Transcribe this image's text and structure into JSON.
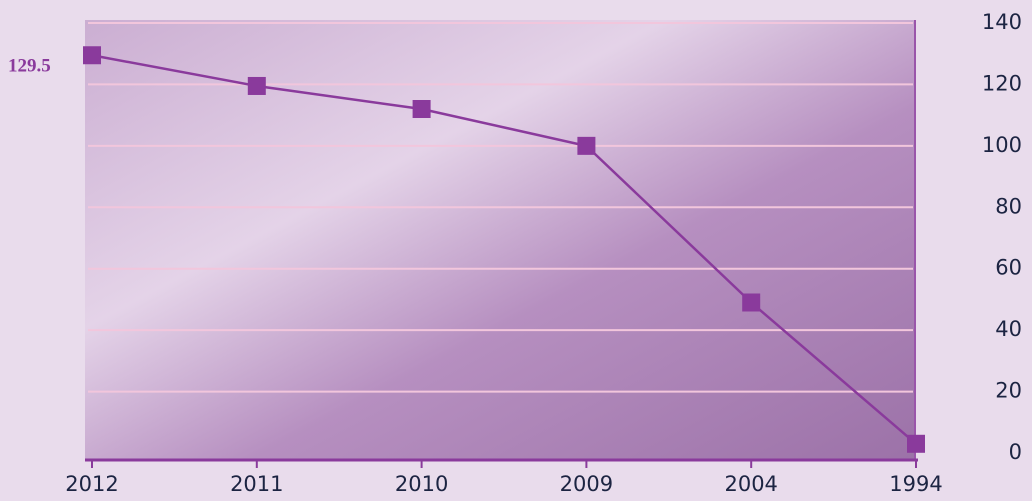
{
  "chart_data": {
    "type": "line",
    "categories": [
      "2012",
      "2011",
      "2010",
      "2009",
      "2004",
      "1994"
    ],
    "series": [
      {
        "name": "",
        "color": "#8a3a9c",
        "values": [
          129.5,
          119.5,
          112,
          100,
          49,
          3
        ]
      }
    ],
    "ylim": [
      0,
      140
    ],
    "yticks": [
      0,
      20,
      40,
      60,
      80,
      100,
      120,
      140
    ],
    "grid": true
  }
}
